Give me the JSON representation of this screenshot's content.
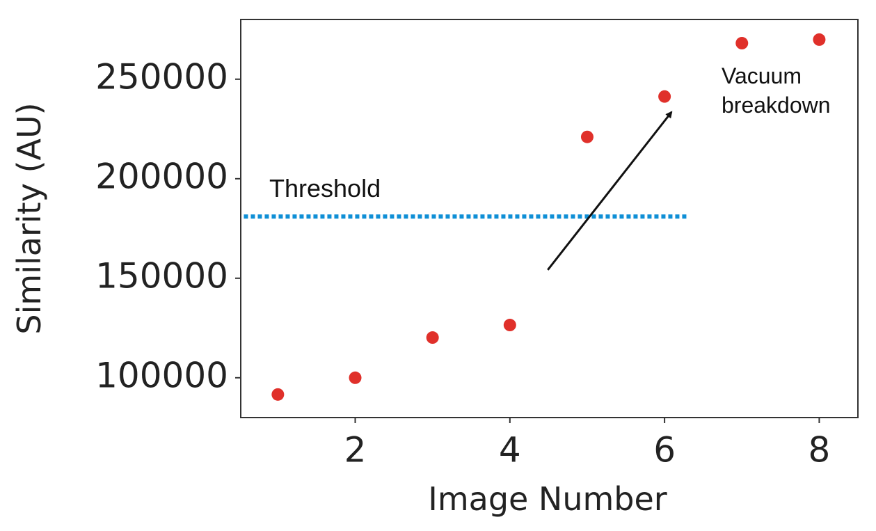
{
  "chart_data": {
    "type": "scatter",
    "x_label": "Image Number",
    "y_label": "Similarity (AU)",
    "x": [
      1,
      2,
      3,
      4,
      5,
      6,
      7,
      8
    ],
    "values": [
      91600,
      100000,
      120200,
      126500,
      221000,
      241300,
      268100,
      269900
    ],
    "color": "#e0302a",
    "xlim": [
      0.52,
      8.5
    ],
    "xticks": [
      2,
      4,
      6,
      8
    ],
    "ylim": [
      80000,
      280000
    ],
    "yticks": [
      100000,
      150000,
      200000,
      250000
    ],
    "threshold": {
      "label": "Threshold",
      "value": 181000,
      "xmin": 0.56,
      "xmax": 6.3,
      "color": "#0f8fd6"
    },
    "annotation": {
      "text_lines": [
        "Vacuum",
        "breakdown"
      ],
      "arrow_x": [
        4.49,
        6.09
      ],
      "arrow_y": [
        154200,
        233500
      ]
    }
  }
}
